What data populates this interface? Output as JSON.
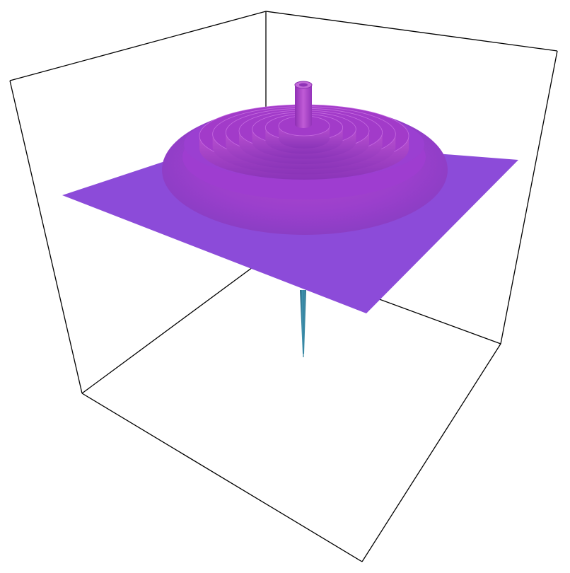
{
  "chart_data": {
    "type": "surface3d",
    "title": "",
    "xlabel": "",
    "ylabel": "",
    "zlabel": "",
    "axes_box": true,
    "tick_labels": false,
    "grid": false,
    "legend": "none",
    "surface": {
      "shape": "radial concentric ripple terraces on a flat square plane",
      "terrace_count": 7,
      "central_peak": true,
      "downward_spike": true,
      "colors": {
        "plane": "#8c4bd9",
        "outer_rim": "#9b3fd1",
        "terraces": "#a23bc9",
        "peak": "#b23fc8",
        "spike": "#2f7f9a"
      }
    }
  },
  "colors": {
    "background": "#ffffff",
    "box_edges": "#000000"
  }
}
